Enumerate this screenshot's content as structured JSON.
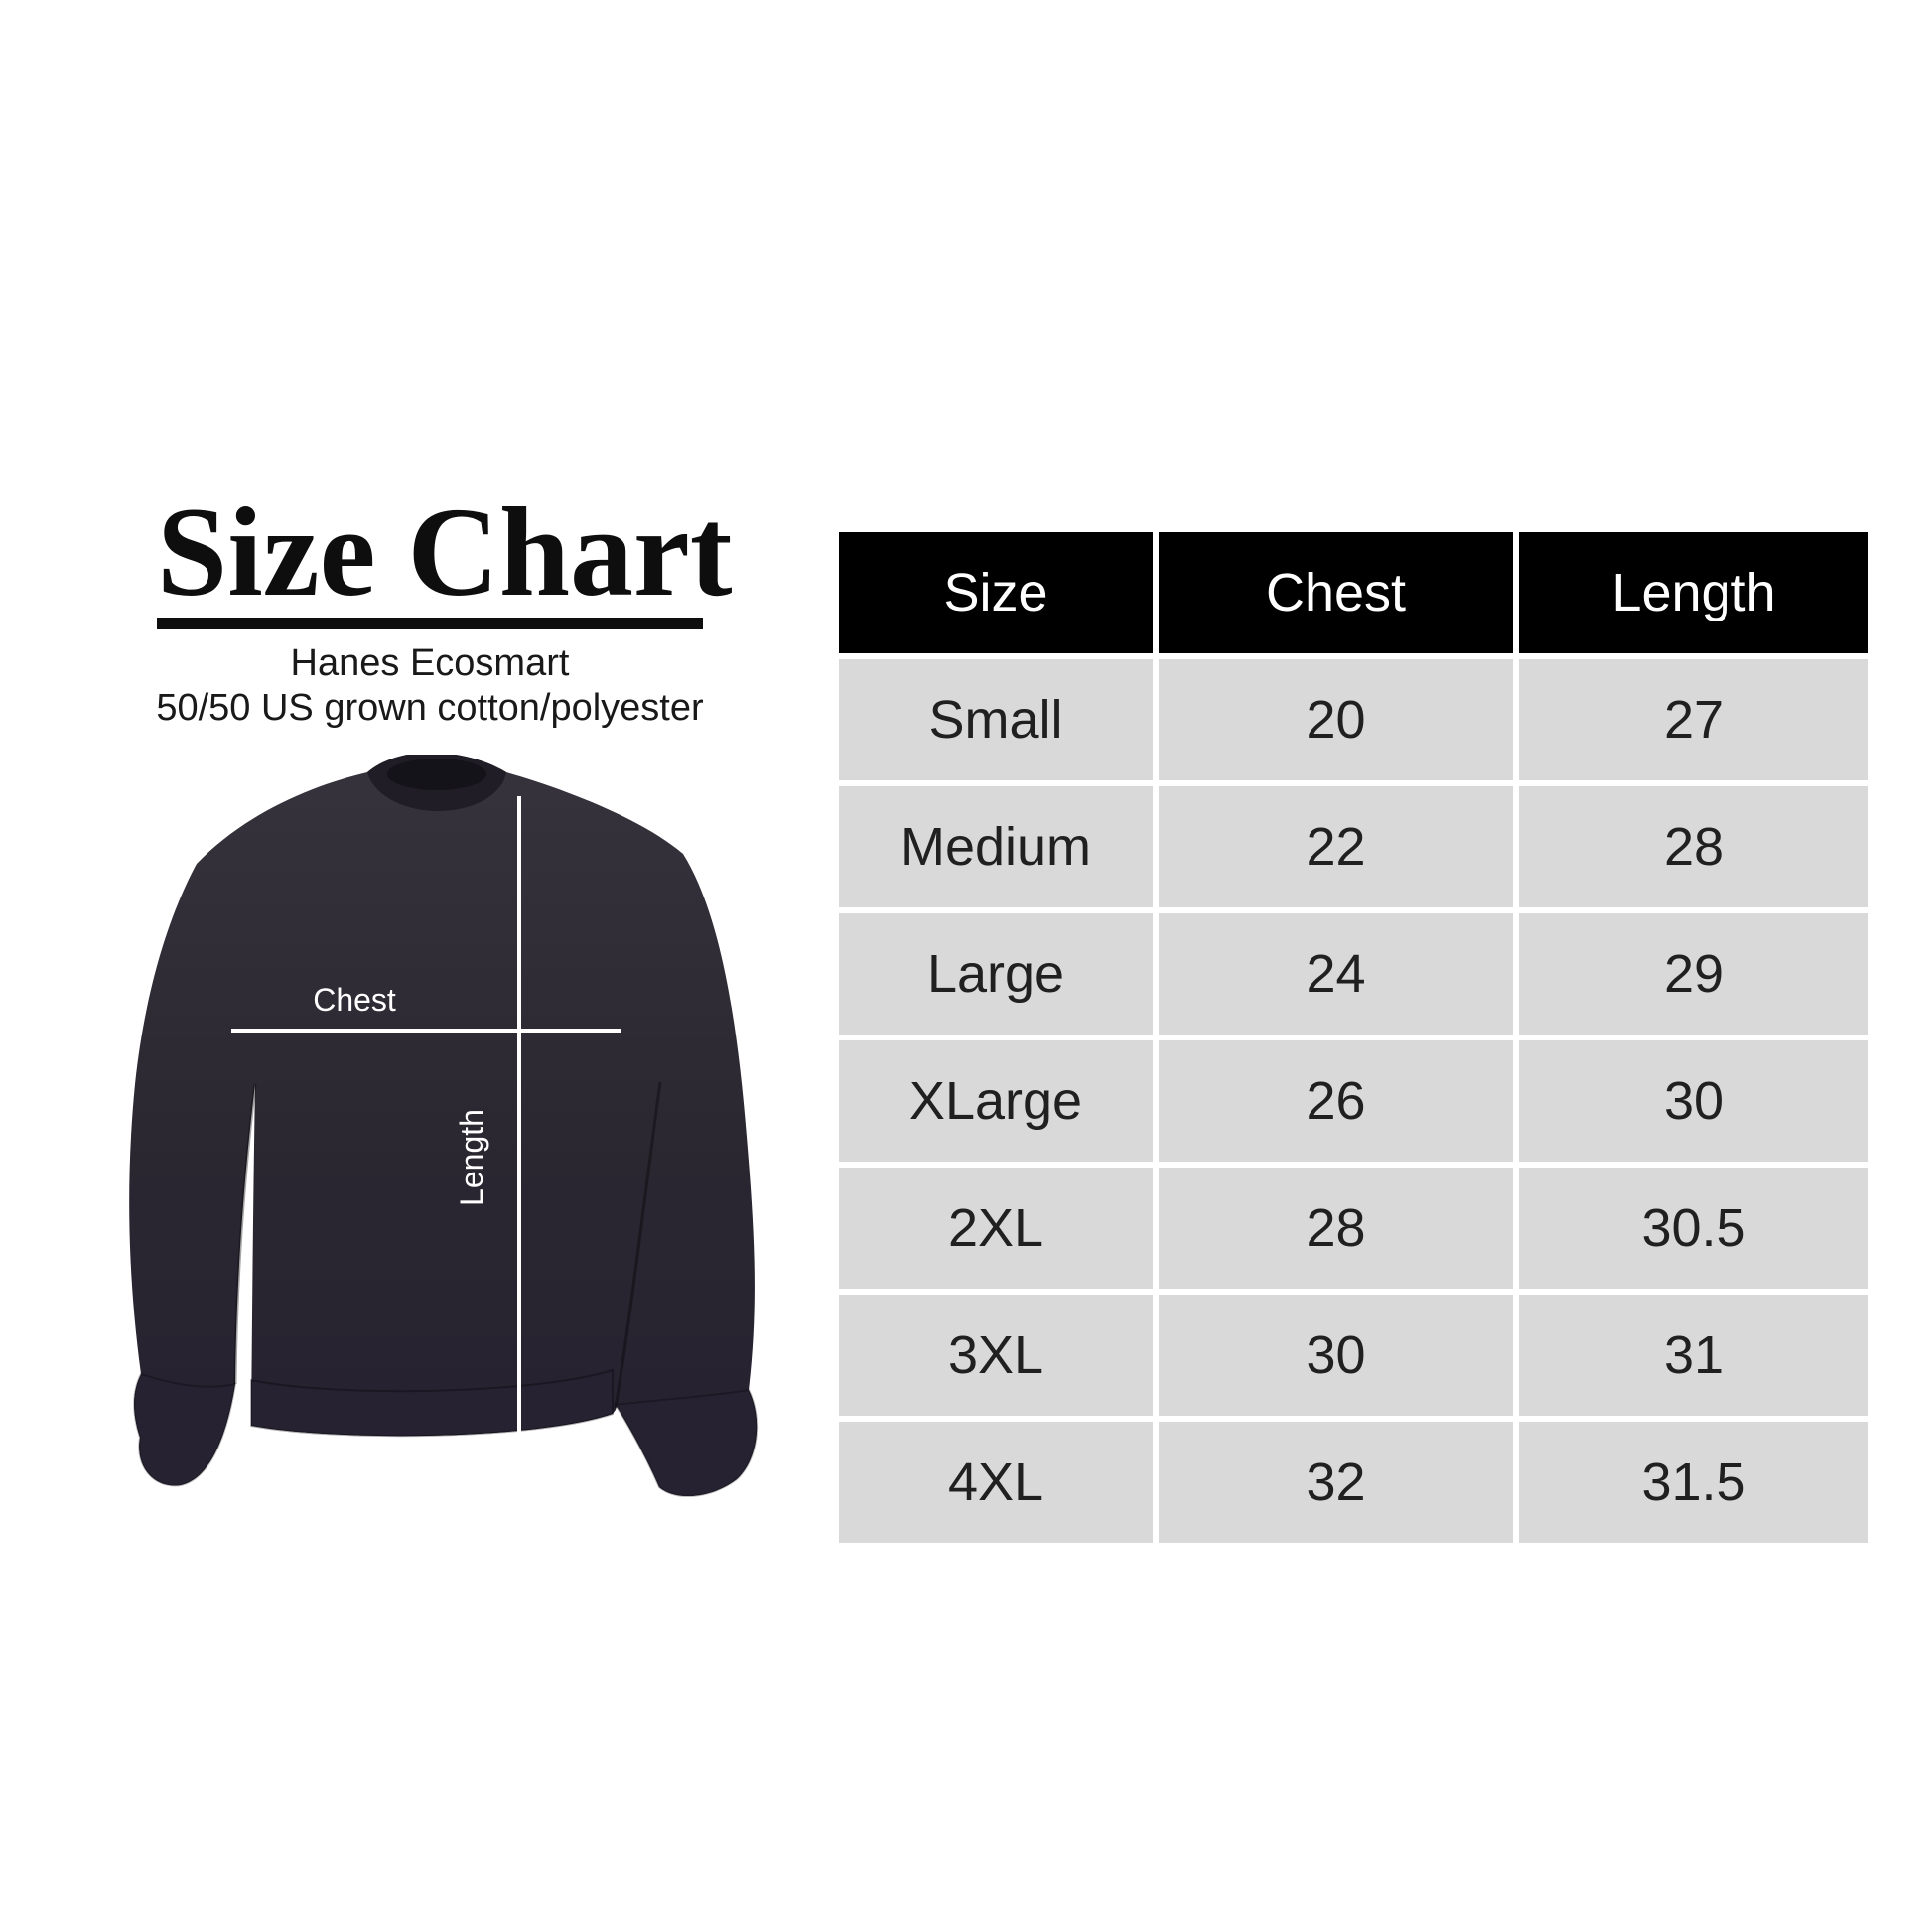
{
  "left_panel": {
    "title": "Size Chart",
    "subtitle_line1": "Hanes Ecosmart",
    "subtitle_line2": "50/50 US grown cotton/polyester",
    "diagram": {
      "chest_label": "Chest",
      "length_label": "Length",
      "garment_color": "#2b2731",
      "measure_line_color": "#ffffff"
    }
  },
  "size_table": {
    "header_bg": "#000000",
    "header_text_color": "#ffffff",
    "row_bg": "#d9d9d9",
    "columns": [
      "Size",
      "Chest",
      "Length"
    ],
    "rows": [
      [
        "Small",
        "20",
        "27"
      ],
      [
        "Medium",
        "22",
        "28"
      ],
      [
        "Large",
        "24",
        "29"
      ],
      [
        "XLarge",
        "26",
        "30"
      ],
      [
        "2XL",
        "28",
        "30.5"
      ],
      [
        "3XL",
        "30",
        "31"
      ],
      [
        "4XL",
        "32",
        "31.5"
      ]
    ]
  },
  "chart_data": {
    "type": "table",
    "title": "Size Chart",
    "subtitle": [
      "Hanes Ecosmart",
      "50/50 US grown cotton/polyester"
    ],
    "columns": [
      "Size",
      "Chest",
      "Length"
    ],
    "rows": [
      [
        "Small",
        20,
        27
      ],
      [
        "Medium",
        22,
        28
      ],
      [
        "Large",
        24,
        29
      ],
      [
        "XLarge",
        26,
        30
      ],
      [
        "2XL",
        28,
        30.5
      ],
      [
        "3XL",
        30,
        31
      ],
      [
        "4XL",
        32,
        31.5
      ]
    ],
    "diagram_labels": [
      "Chest",
      "Length"
    ],
    "layout": {
      "table_position": "right",
      "diagram_position": "left",
      "header_style": "black-bg-white-text",
      "row_style": "light-gray-bg-black-text",
      "grid": "white gutters between cells"
    }
  }
}
